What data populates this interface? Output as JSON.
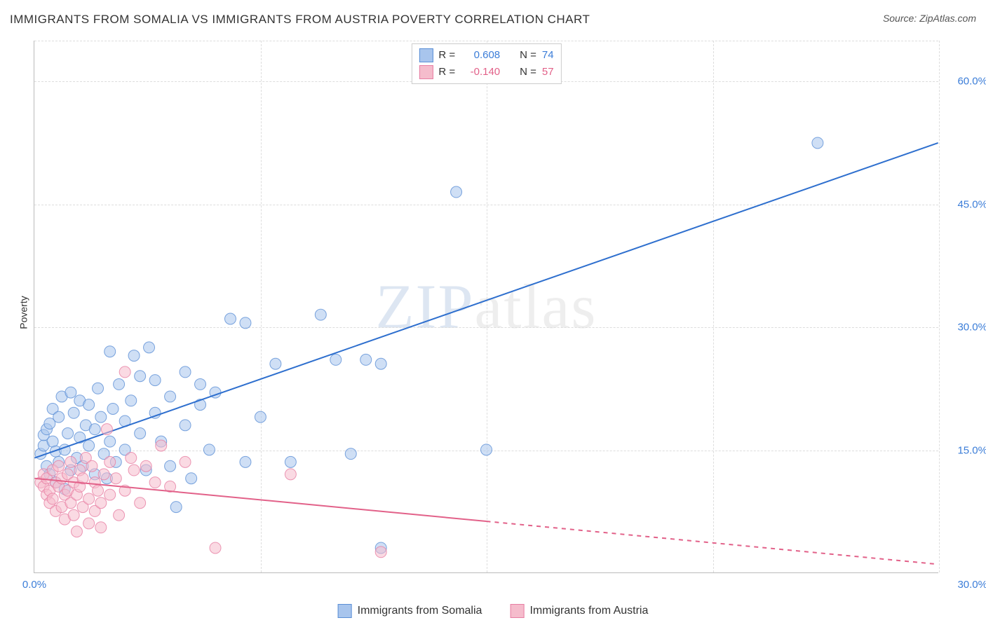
{
  "title": "IMMIGRANTS FROM SOMALIA VS IMMIGRANTS FROM AUSTRIA POVERTY CORRELATION CHART",
  "source_label": "Source: ",
  "source_value": "ZipAtlas.com",
  "ylabel": "Poverty",
  "watermark": {
    "part1": "ZIP",
    "part2": "atlas"
  },
  "chart": {
    "type": "scatter",
    "xlim": [
      0,
      30
    ],
    "ylim": [
      0,
      65
    ],
    "xticks": [
      0,
      30
    ],
    "xtick_labels": [
      "0.0%",
      "30.0%"
    ],
    "yticks": [
      15,
      30,
      45,
      60
    ],
    "ytick_labels": [
      "15.0%",
      "30.0%",
      "45.0%",
      "60.0%"
    ],
    "x_gridlines_at": [
      7.5,
      15,
      22.5,
      30
    ],
    "y_gridlines_at": [
      15,
      30,
      45,
      60,
      65
    ],
    "background_color": "#ffffff",
    "grid_color": "#dddddd",
    "axis_color": "#bbbbbb",
    "marker_radius": 8,
    "marker_opacity": 0.55,
    "marker_stroke_opacity": 0.8,
    "line_width": 2,
    "series": [
      {
        "name": "Immigrants from Somalia",
        "color_fill": "#a8c5ed",
        "color_stroke": "#5b8fd6",
        "line_color": "#2e6fce",
        "r_value": "0.608",
        "n_value": "74",
        "regression": {
          "x1": 0,
          "y1": 14.0,
          "x2": 30,
          "y2": 52.5,
          "solid_until_x": 30
        },
        "points": [
          [
            0.2,
            14.5
          ],
          [
            0.3,
            15.5
          ],
          [
            0.3,
            16.8
          ],
          [
            0.4,
            13.0
          ],
          [
            0.4,
            17.5
          ],
          [
            0.5,
            18.2
          ],
          [
            0.5,
            12.0
          ],
          [
            0.6,
            16.0
          ],
          [
            0.6,
            20.0
          ],
          [
            0.7,
            14.8
          ],
          [
            0.7,
            11.0
          ],
          [
            0.8,
            19.0
          ],
          [
            0.8,
            13.5
          ],
          [
            0.9,
            21.5
          ],
          [
            1.0,
            15.0
          ],
          [
            1.0,
            10.2
          ],
          [
            1.1,
            17.0
          ],
          [
            1.2,
            22.0
          ],
          [
            1.2,
            12.5
          ],
          [
            1.3,
            19.5
          ],
          [
            1.4,
            14.0
          ],
          [
            1.5,
            16.5
          ],
          [
            1.5,
            21.0
          ],
          [
            1.6,
            13.0
          ],
          [
            1.7,
            18.0
          ],
          [
            1.8,
            15.5
          ],
          [
            1.8,
            20.5
          ],
          [
            2.0,
            17.5
          ],
          [
            2.0,
            12.0
          ],
          [
            2.1,
            22.5
          ],
          [
            2.2,
            19.0
          ],
          [
            2.3,
            14.5
          ],
          [
            2.4,
            11.5
          ],
          [
            2.5,
            16.0
          ],
          [
            2.5,
            27.0
          ],
          [
            2.6,
            20.0
          ],
          [
            2.7,
            13.5
          ],
          [
            2.8,
            23.0
          ],
          [
            3.0,
            18.5
          ],
          [
            3.0,
            15.0
          ],
          [
            3.2,
            21.0
          ],
          [
            3.3,
            26.5
          ],
          [
            3.5,
            17.0
          ],
          [
            3.5,
            24.0
          ],
          [
            3.7,
            12.5
          ],
          [
            3.8,
            27.5
          ],
          [
            4.0,
            19.5
          ],
          [
            4.0,
            23.5
          ],
          [
            4.2,
            16.0
          ],
          [
            4.5,
            21.5
          ],
          [
            4.5,
            13.0
          ],
          [
            4.7,
            8.0
          ],
          [
            5.0,
            24.5
          ],
          [
            5.0,
            18.0
          ],
          [
            5.2,
            11.5
          ],
          [
            5.5,
            23.0
          ],
          [
            5.5,
            20.5
          ],
          [
            5.8,
            15.0
          ],
          [
            6.0,
            22.0
          ],
          [
            6.5,
            31.0
          ],
          [
            7.0,
            30.5
          ],
          [
            7.0,
            13.5
          ],
          [
            7.5,
            19.0
          ],
          [
            8.0,
            25.5
          ],
          [
            8.5,
            13.5
          ],
          [
            9.5,
            31.5
          ],
          [
            10.0,
            26.0
          ],
          [
            10.5,
            14.5
          ],
          [
            11.0,
            26.0
          ],
          [
            11.5,
            25.5
          ],
          [
            11.5,
            3.0
          ],
          [
            14.0,
            46.5
          ],
          [
            15.0,
            15.0
          ],
          [
            26.0,
            52.5
          ]
        ]
      },
      {
        "name": "Immigrants from Austria",
        "color_fill": "#f5bccc",
        "color_stroke": "#e77ea3",
        "line_color": "#e26189",
        "r_value": "-0.140",
        "n_value": "57",
        "regression": {
          "x1": 0,
          "y1": 11.5,
          "x2": 30,
          "y2": 1.0,
          "solid_until_x": 15
        },
        "points": [
          [
            0.2,
            11.0
          ],
          [
            0.3,
            10.5
          ],
          [
            0.3,
            12.0
          ],
          [
            0.4,
            9.5
          ],
          [
            0.4,
            11.5
          ],
          [
            0.5,
            10.0
          ],
          [
            0.5,
            8.5
          ],
          [
            0.6,
            12.5
          ],
          [
            0.6,
            9.0
          ],
          [
            0.7,
            11.0
          ],
          [
            0.7,
            7.5
          ],
          [
            0.8,
            10.5
          ],
          [
            0.8,
            13.0
          ],
          [
            0.9,
            8.0
          ],
          [
            0.9,
            11.5
          ],
          [
            1.0,
            9.5
          ],
          [
            1.0,
            6.5
          ],
          [
            1.1,
            12.0
          ],
          [
            1.1,
            10.0
          ],
          [
            1.2,
            8.5
          ],
          [
            1.2,
            13.5
          ],
          [
            1.3,
            11.0
          ],
          [
            1.3,
            7.0
          ],
          [
            1.4,
            9.5
          ],
          [
            1.4,
            5.0
          ],
          [
            1.5,
            12.5
          ],
          [
            1.5,
            10.5
          ],
          [
            1.6,
            8.0
          ],
          [
            1.6,
            11.5
          ],
          [
            1.7,
            14.0
          ],
          [
            1.8,
            6.0
          ],
          [
            1.8,
            9.0
          ],
          [
            1.9,
            13.0
          ],
          [
            2.0,
            11.0
          ],
          [
            2.0,
            7.5
          ],
          [
            2.1,
            10.0
          ],
          [
            2.2,
            8.5
          ],
          [
            2.2,
            5.5
          ],
          [
            2.3,
            12.0
          ],
          [
            2.4,
            17.5
          ],
          [
            2.5,
            9.5
          ],
          [
            2.5,
            13.5
          ],
          [
            2.7,
            11.5
          ],
          [
            2.8,
            7.0
          ],
          [
            3.0,
            24.5
          ],
          [
            3.0,
            10.0
          ],
          [
            3.2,
            14.0
          ],
          [
            3.3,
            12.5
          ],
          [
            3.5,
            8.5
          ],
          [
            3.7,
            13.0
          ],
          [
            4.0,
            11.0
          ],
          [
            4.2,
            15.5
          ],
          [
            4.5,
            10.5
          ],
          [
            5.0,
            13.5
          ],
          [
            6.0,
            3.0
          ],
          [
            8.5,
            12.0
          ],
          [
            11.5,
            2.5
          ]
        ]
      }
    ]
  },
  "stat_box": {
    "r_label": "R =",
    "n_label": "N ="
  },
  "tick_color_blue": "#3b7dd8",
  "tick_color_pink": "#e26189"
}
